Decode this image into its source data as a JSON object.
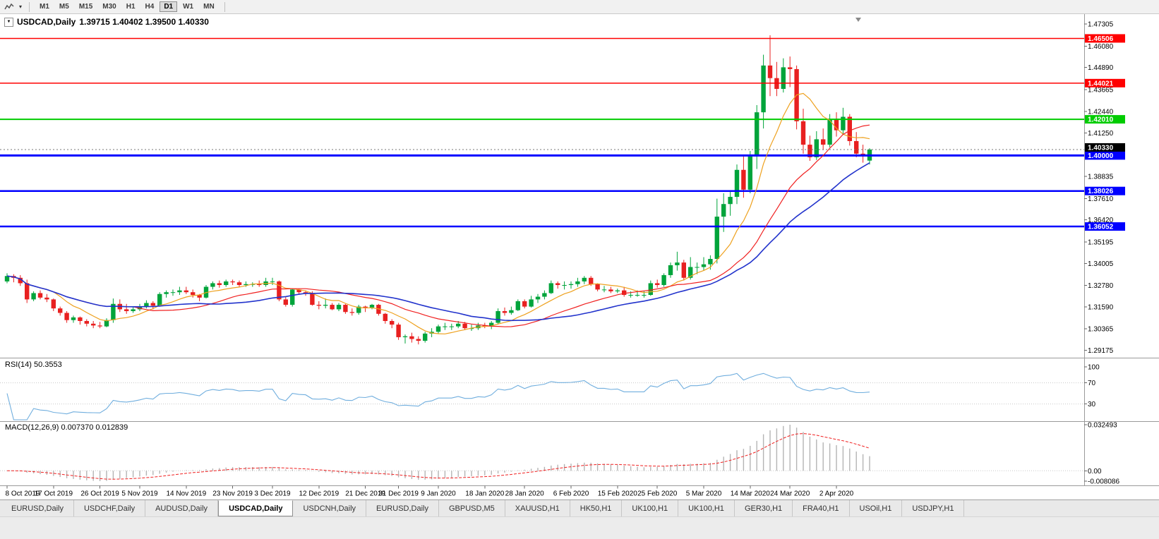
{
  "toolbar": {
    "timeframes": [
      {
        "label": "M1",
        "active": false
      },
      {
        "label": "M5",
        "active": false
      },
      {
        "label": "M15",
        "active": false
      },
      {
        "label": "M30",
        "active": false
      },
      {
        "label": "H1",
        "active": false
      },
      {
        "label": "H4",
        "active": false
      },
      {
        "label": "D1",
        "active": true
      },
      {
        "label": "W1",
        "active": false
      },
      {
        "label": "MN",
        "active": false
      }
    ]
  },
  "chart": {
    "symbol": "USDCAD,Daily",
    "ohlc_text": "1.39715 1.40402 1.39500 1.40330",
    "open": "1.39715",
    "high": "1.40402",
    "low": "1.39500",
    "close": "1.40330",
    "rsi_label": "RSI(14) 50.3553",
    "macd_label": "MACD(12,26,9) 0.007370 0.012839"
  },
  "chart_data": {
    "type": "candlestick",
    "symbol": "USDCAD",
    "timeframe": "Daily",
    "y_range": [
      1.288,
      1.477
    ],
    "price_scale_ticks": [
      "1.47305",
      "1.46080",
      "1.44890",
      "1.43665",
      "1.42440",
      "1.41250",
      "1.38835",
      "1.37610",
      "1.36420",
      "1.35195",
      "1.34005",
      "1.32780",
      "1.31590",
      "1.30365",
      "1.29175"
    ],
    "rsi_scale": [
      "100",
      "70",
      "30"
    ],
    "macd_scale": [
      "0.032493",
      "0.00",
      "-0.008086"
    ],
    "x_labels": [
      {
        "i": 0,
        "t": "8 Oct 2019"
      },
      {
        "i": 7,
        "t": "17 Oct 2019"
      },
      {
        "i": 14,
        "t": "26 Oct 2019"
      },
      {
        "i": 20,
        "t": "5 Nov 2019"
      },
      {
        "i": 27,
        "t": "14 Nov 2019"
      },
      {
        "i": 34,
        "t": "23 Nov 2019"
      },
      {
        "i": 40,
        "t": "3 Dec 2019"
      },
      {
        "i": 47,
        "t": "12 Dec 2019"
      },
      {
        "i": 54,
        "t": "21 Dec 2019"
      },
      {
        "i": 59,
        "t": "31 Dec 2019"
      },
      {
        "i": 65,
        "t": "9 Jan 2020"
      },
      {
        "i": 72,
        "t": "18 Jan 2020"
      },
      {
        "i": 78,
        "t": "28 Jan 2020"
      },
      {
        "i": 85,
        "t": "6 Feb 2020"
      },
      {
        "i": 92,
        "t": "15 Feb 2020"
      },
      {
        "i": 98,
        "t": "25 Feb 2020"
      },
      {
        "i": 105,
        "t": "5 Mar 2020"
      },
      {
        "i": 112,
        "t": "14 Mar 2020"
      },
      {
        "i": 118,
        "t": "24 Mar 2020"
      },
      {
        "i": 125,
        "t": "2 Apr 2020"
      }
    ],
    "levels": [
      {
        "label": "1.46506",
        "value": 1.46506,
        "color": "#ff0000",
        "width": 1.5
      },
      {
        "label": "1.44021",
        "value": 1.44021,
        "color": "#ff0000",
        "width": 1.5
      },
      {
        "label": "1.42010",
        "value": 1.4201,
        "color": "#00cc00",
        "width": 2
      },
      {
        "label": "1.40000",
        "value": 1.4,
        "color": "#0000ff",
        "width": 3
      },
      {
        "label": "1.38026",
        "value": 1.38026,
        "color": "#0000ff",
        "width": 2.5
      },
      {
        "label": "1.36052",
        "value": 1.36052,
        "color": "#0000ff",
        "width": 2.5
      }
    ],
    "current_price": {
      "label": "1.40330",
      "value": 1.4033,
      "color": "#000000"
    },
    "moving_averages": [
      {
        "name": "ma-fast",
        "period": 8,
        "color": "#eea11e"
      },
      {
        "name": "ma-mid",
        "period": 20,
        "color": "#f02020"
      },
      {
        "name": "ma-slow",
        "period": 30,
        "color": "#2233cc"
      }
    ],
    "rsi": {
      "period": 14,
      "value": 50.3553,
      "levels": [
        70,
        30
      ],
      "color": "#70aede"
    },
    "macd": {
      "fast": 12,
      "slow": 26,
      "signal": 9,
      "main_value": 0.00737,
      "signal_value": 0.012839,
      "hist_color": "#b4b4b4",
      "signal_color": "#f02020"
    },
    "candle_up_color": "#00a43b",
    "candle_down_color": "#e82020",
    "candles": [
      [
        1.33,
        1.3345,
        1.329,
        1.333
      ],
      [
        1.333,
        1.334,
        1.3295,
        1.332
      ],
      [
        1.332,
        1.3335,
        1.3275,
        1.329
      ],
      [
        1.329,
        1.331,
        1.318,
        1.32
      ],
      [
        1.32,
        1.3245,
        1.319,
        1.3235
      ],
      [
        1.3235,
        1.325,
        1.32,
        1.321
      ],
      [
        1.321,
        1.323,
        1.3185,
        1.32
      ],
      [
        1.32,
        1.3205,
        1.3135,
        1.315
      ],
      [
        1.315,
        1.316,
        1.311,
        1.3125
      ],
      [
        1.3125,
        1.3135,
        1.307,
        1.3085
      ],
      [
        1.3085,
        1.311,
        1.307,
        1.31
      ],
      [
        1.31,
        1.3105,
        1.306,
        1.308
      ],
      [
        1.308,
        1.309,
        1.305,
        1.3065
      ],
      [
        1.3065,
        1.308,
        1.304,
        1.3055
      ],
      [
        1.3055,
        1.3075,
        1.304,
        1.305
      ],
      [
        1.305,
        1.3095,
        1.3045,
        1.3085
      ],
      [
        1.3085,
        1.3205,
        1.307,
        1.3175
      ],
      [
        1.3175,
        1.32,
        1.313,
        1.3145
      ],
      [
        1.3145,
        1.3175,
        1.312,
        1.3135
      ],
      [
        1.3135,
        1.316,
        1.3125,
        1.3145
      ],
      [
        1.3145,
        1.3175,
        1.3135,
        1.316
      ],
      [
        1.316,
        1.3195,
        1.315,
        1.318
      ],
      [
        1.318,
        1.319,
        1.3145,
        1.3165
      ],
      [
        1.3165,
        1.324,
        1.316,
        1.323
      ],
      [
        1.323,
        1.325,
        1.321,
        1.324
      ],
      [
        1.324,
        1.3255,
        1.322,
        1.324
      ],
      [
        1.324,
        1.327,
        1.3225,
        1.325
      ],
      [
        1.325,
        1.327,
        1.323,
        1.324
      ],
      [
        1.324,
        1.3255,
        1.321,
        1.3225
      ],
      [
        1.3225,
        1.323,
        1.319,
        1.321
      ],
      [
        1.321,
        1.328,
        1.3205,
        1.327
      ],
      [
        1.327,
        1.33,
        1.3255,
        1.329
      ],
      [
        1.329,
        1.3305,
        1.3265,
        1.328
      ],
      [
        1.328,
        1.331,
        1.327,
        1.33
      ],
      [
        1.33,
        1.331,
        1.328,
        1.3295
      ],
      [
        1.3295,
        1.3305,
        1.327,
        1.328
      ],
      [
        1.328,
        1.33,
        1.327,
        1.3285
      ],
      [
        1.3285,
        1.3295,
        1.327,
        1.3285
      ],
      [
        1.3285,
        1.3305,
        1.327,
        1.328
      ],
      [
        1.328,
        1.332,
        1.327,
        1.33
      ],
      [
        1.33,
        1.332,
        1.328,
        1.33
      ],
      [
        1.33,
        1.3305,
        1.319,
        1.32
      ],
      [
        1.32,
        1.3215,
        1.316,
        1.317
      ],
      [
        1.317,
        1.326,
        1.316,
        1.3255
      ],
      [
        1.3255,
        1.326,
        1.323,
        1.324
      ],
      [
        1.324,
        1.325,
        1.322,
        1.3235
      ],
      [
        1.3235,
        1.3245,
        1.3165,
        1.317
      ],
      [
        1.317,
        1.319,
        1.3145,
        1.3165
      ],
      [
        1.3165,
        1.3205,
        1.315,
        1.317
      ],
      [
        1.317,
        1.318,
        1.314,
        1.3145
      ],
      [
        1.3145,
        1.318,
        1.3135,
        1.317
      ],
      [
        1.317,
        1.3175,
        1.312,
        1.313
      ],
      [
        1.313,
        1.315,
        1.311,
        1.3125
      ],
      [
        1.3125,
        1.317,
        1.3115,
        1.316
      ],
      [
        1.316,
        1.3165,
        1.313,
        1.3155
      ],
      [
        1.3155,
        1.3175,
        1.3145,
        1.317
      ],
      [
        1.317,
        1.3175,
        1.311,
        1.312
      ],
      [
        1.312,
        1.3125,
        1.3065,
        1.308
      ],
      [
        1.308,
        1.309,
        1.304,
        1.306
      ],
      [
        1.306,
        1.307,
        1.2975,
        1.299
      ],
      [
        1.299,
        1.3005,
        1.2955,
        1.2995
      ],
      [
        1.2995,
        1.3015,
        1.296,
        1.298
      ],
      [
        1.298,
        1.2995,
        1.295,
        1.297
      ],
      [
        1.297,
        1.302,
        1.296,
        1.301
      ],
      [
        1.301,
        1.304,
        1.299,
        1.302
      ],
      [
        1.302,
        1.306,
        1.301,
        1.305
      ],
      [
        1.305,
        1.307,
        1.303,
        1.305
      ],
      [
        1.305,
        1.3065,
        1.303,
        1.305
      ],
      [
        1.305,
        1.308,
        1.304,
        1.3065
      ],
      [
        1.3065,
        1.3075,
        1.303,
        1.304
      ],
      [
        1.304,
        1.306,
        1.3025,
        1.304
      ],
      [
        1.304,
        1.307,
        1.303,
        1.3055
      ],
      [
        1.3055,
        1.307,
        1.304,
        1.305
      ],
      [
        1.305,
        1.308,
        1.3035,
        1.307
      ],
      [
        1.307,
        1.315,
        1.306,
        1.3135
      ],
      [
        1.3135,
        1.3155,
        1.311,
        1.3125
      ],
      [
        1.3125,
        1.316,
        1.3115,
        1.314
      ],
      [
        1.314,
        1.32,
        1.3135,
        1.319
      ],
      [
        1.319,
        1.32,
        1.315,
        1.316
      ],
      [
        1.316,
        1.322,
        1.3155,
        1.32
      ],
      [
        1.32,
        1.323,
        1.318,
        1.3215
      ],
      [
        1.3215,
        1.325,
        1.32,
        1.3235
      ],
      [
        1.3235,
        1.3305,
        1.323,
        1.329
      ],
      [
        1.329,
        1.33,
        1.326,
        1.328
      ],
      [
        1.328,
        1.33,
        1.3255,
        1.328
      ],
      [
        1.328,
        1.33,
        1.326,
        1.3285
      ],
      [
        1.3285,
        1.332,
        1.327,
        1.33
      ],
      [
        1.33,
        1.333,
        1.3285,
        1.332
      ],
      [
        1.332,
        1.333,
        1.3275,
        1.3285
      ],
      [
        1.3285,
        1.329,
        1.3245,
        1.3255
      ],
      [
        1.3255,
        1.3275,
        1.324,
        1.3255
      ],
      [
        1.3255,
        1.327,
        1.3235,
        1.3245
      ],
      [
        1.3245,
        1.326,
        1.3235,
        1.325
      ],
      [
        1.325,
        1.327,
        1.3215,
        1.3225
      ],
      [
        1.3225,
        1.3245,
        1.321,
        1.3225
      ],
      [
        1.3225,
        1.325,
        1.3215,
        1.3225
      ],
      [
        1.3225,
        1.3245,
        1.321,
        1.3225
      ],
      [
        1.3225,
        1.3305,
        1.322,
        1.329
      ],
      [
        1.329,
        1.331,
        1.3265,
        1.328
      ],
      [
        1.328,
        1.3345,
        1.327,
        1.3335
      ],
      [
        1.3335,
        1.3405,
        1.332,
        1.339
      ],
      [
        1.339,
        1.3465,
        1.336,
        1.3405
      ],
      [
        1.3405,
        1.342,
        1.3305,
        1.332
      ],
      [
        1.332,
        1.3435,
        1.331,
        1.338
      ],
      [
        1.338,
        1.3405,
        1.334,
        1.338
      ],
      [
        1.338,
        1.3435,
        1.336,
        1.3395
      ],
      [
        1.3395,
        1.3445,
        1.3365,
        1.3425
      ],
      [
        1.3425,
        1.376,
        1.34,
        1.366
      ],
      [
        1.366,
        1.379,
        1.3575,
        1.373
      ],
      [
        1.373,
        1.3805,
        1.3665,
        1.377
      ],
      [
        1.377,
        1.395,
        1.373,
        1.392
      ],
      [
        1.392,
        1.3995,
        1.3765,
        1.381
      ],
      [
        1.381,
        1.4025,
        1.379,
        1.3995
      ],
      [
        1.3995,
        1.428,
        1.3925,
        1.424
      ],
      [
        1.424,
        1.456,
        1.415,
        1.45
      ],
      [
        1.45,
        1.4668,
        1.433,
        1.443
      ],
      [
        1.443,
        1.452,
        1.433,
        1.437
      ],
      [
        1.437,
        1.454,
        1.435,
        1.449
      ],
      [
        1.449,
        1.455,
        1.438,
        1.448
      ],
      [
        1.448,
        1.45,
        1.4145,
        1.419
      ],
      [
        1.419,
        1.426,
        1.401,
        1.406
      ],
      [
        1.406,
        1.411,
        1.397,
        1.399
      ],
      [
        1.399,
        1.4135,
        1.3975,
        1.409
      ],
      [
        1.409,
        1.415,
        1.403,
        1.406
      ],
      [
        1.406,
        1.423,
        1.4045,
        1.42
      ],
      [
        1.42,
        1.424,
        1.4105,
        1.414
      ],
      [
        1.414,
        1.4265,
        1.412,
        1.4215
      ],
      [
        1.4215,
        1.423,
        1.4055,
        1.408
      ],
      [
        1.408,
        1.413,
        1.399,
        1.401
      ],
      [
        1.401,
        1.406,
        1.396,
        1.4005
      ],
      [
        1.39715,
        1.40402,
        1.395,
        1.4033
      ]
    ]
  },
  "tabs": [
    {
      "label": "EURUSD,Daily",
      "active": false
    },
    {
      "label": "USDCHF,Daily",
      "active": false
    },
    {
      "label": "AUDUSD,Daily",
      "active": false
    },
    {
      "label": "USDCAD,Daily",
      "active": true
    },
    {
      "label": "USDCNH,Daily",
      "active": false
    },
    {
      "label": "EURUSD,Daily",
      "active": false
    },
    {
      "label": "GBPUSD,M5",
      "active": false
    },
    {
      "label": "XAUUSD,H1",
      "active": false
    },
    {
      "label": "HK50,H1",
      "active": false
    },
    {
      "label": "UK100,H1",
      "active": false
    },
    {
      "label": "UK100,H1",
      "active": false
    },
    {
      "label": "GER30,H1",
      "active": false
    },
    {
      "label": "FRA40,H1",
      "active": false
    },
    {
      "label": "USOil,H1",
      "active": false
    },
    {
      "label": "USDJPY,H1",
      "active": false
    }
  ]
}
